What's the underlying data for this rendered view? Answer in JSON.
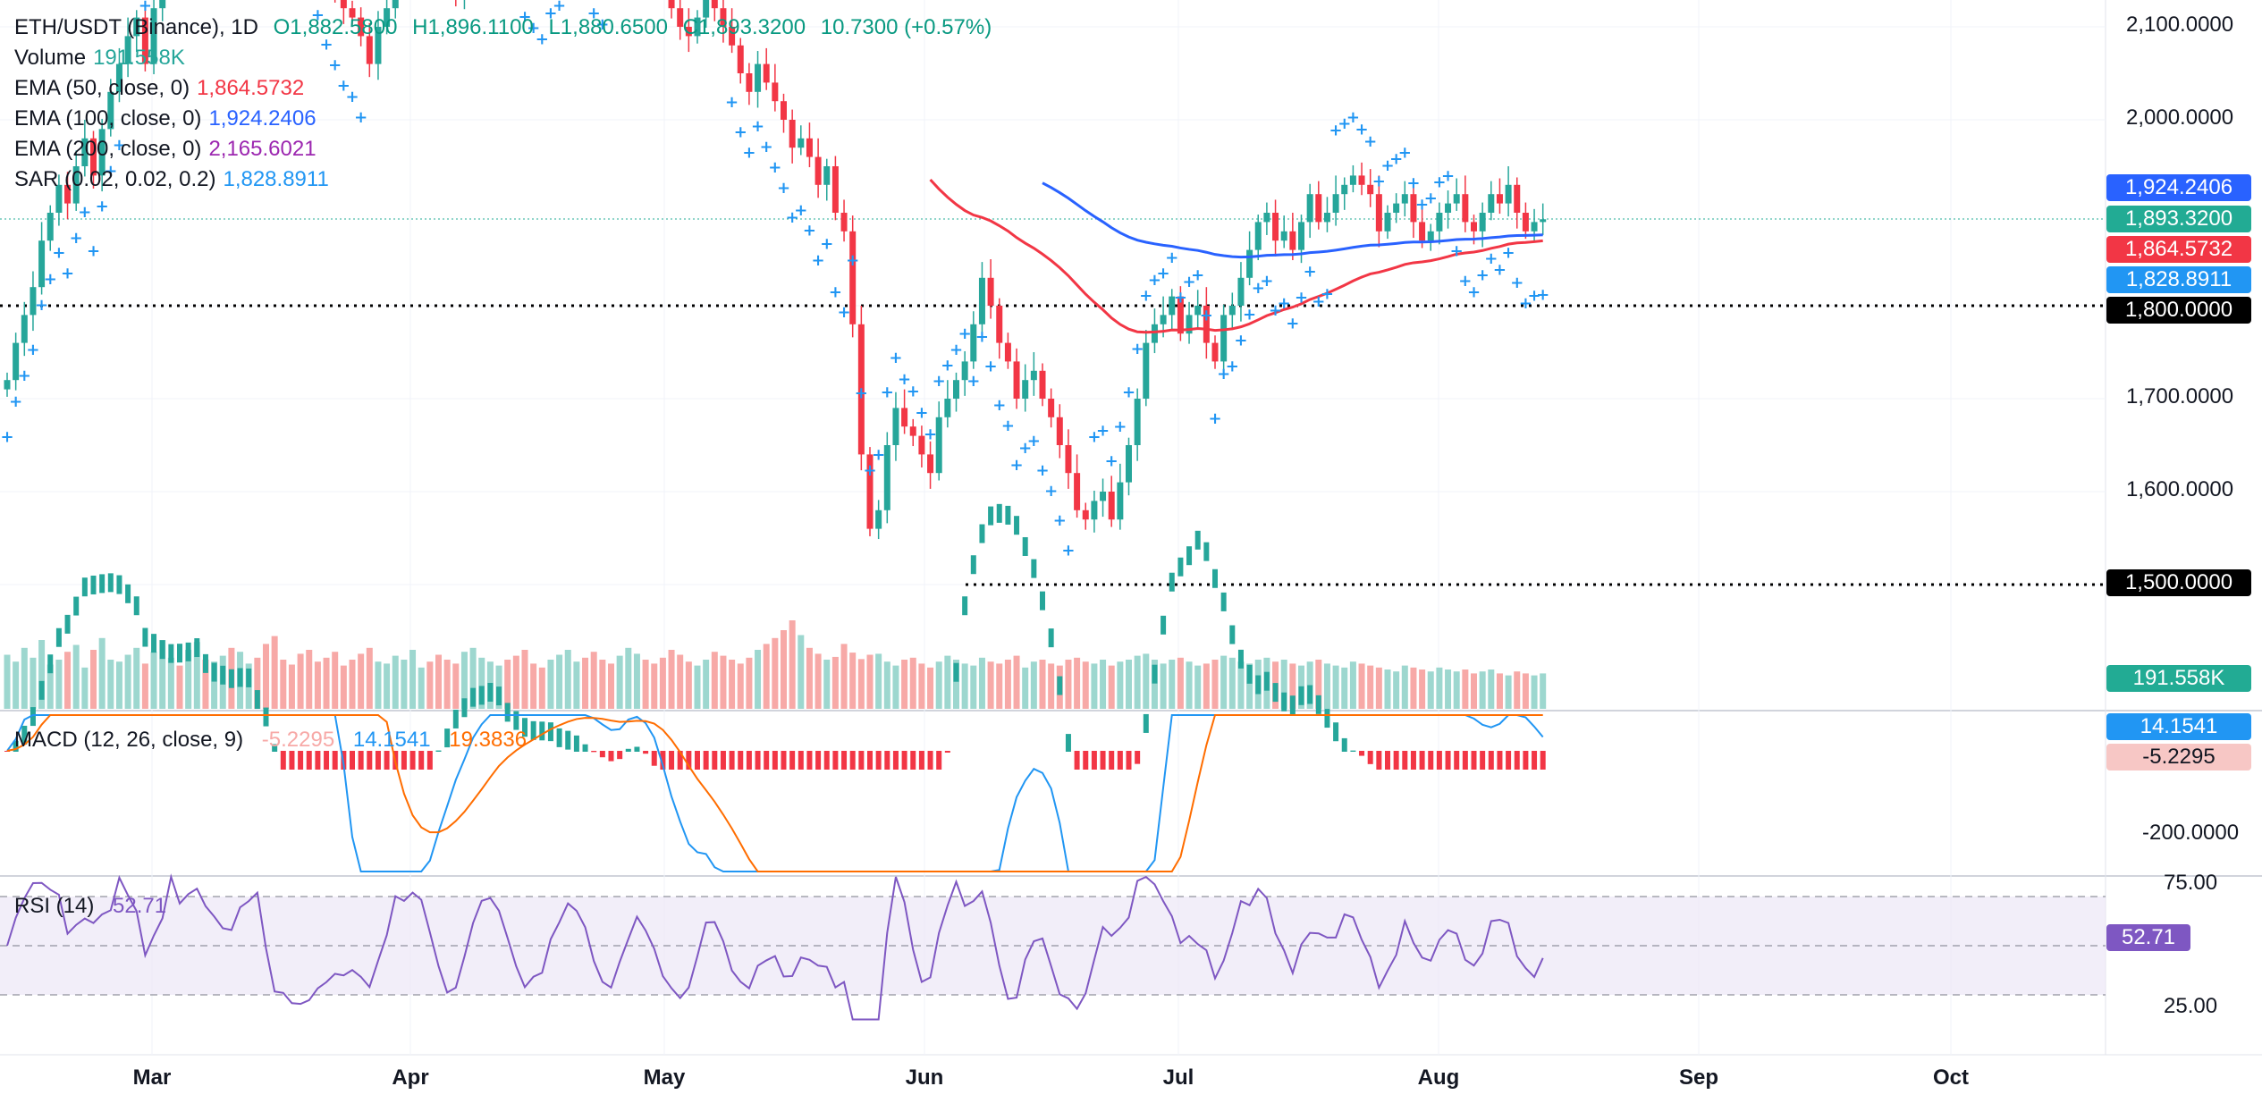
{
  "header": {
    "symbol": "ETH/USDT (Binance), 1D",
    "open": "O1,882.5800",
    "high": "H1,896.1100",
    "low": "L1,880.6500",
    "close": "C1,893.3200",
    "change": "10.7300 (+0.57%)"
  },
  "indicators": [
    {
      "label": "Volume",
      "value": "191.558K",
      "color": "#26a69a"
    },
    {
      "label": "EMA (50, close, 0)",
      "value": "1,864.5732",
      "color": "#f23645"
    },
    {
      "label": "EMA (100, close, 0)",
      "value": "1,924.2406",
      "color": "#2962ff"
    },
    {
      "label": "EMA (200, close, 0)",
      "value": "2,165.6021",
      "color": "#9c27b0"
    },
    {
      "label": "SAR (0.02, 0.02, 0.2)",
      "value": "1,828.8911",
      "color": "#2196f3"
    }
  ],
  "macd": {
    "label": "MACD (12, 26, close, 9)",
    "hist": "-5.2295",
    "macd": "14.1541",
    "signal": "19.3836"
  },
  "rsi": {
    "label": "RSI (14)",
    "value": "52.71"
  },
  "price_axis": [
    "2,100.0000",
    "2,000.0000",
    "1,700.0000",
    "1,600.0000"
  ],
  "macd_axis": [
    "-200.0000"
  ],
  "rsi_axis": [
    "75.00",
    "25.00"
  ],
  "volume_axis_partial": "0",
  "tags": {
    "ema100": "1,924.2406",
    "close": "1,893.3200",
    "ema50": "1,864.5732",
    "sar": "1,828.8911",
    "level1800": "1,800.0000",
    "level1500": "1,500.0000",
    "volume": "191.558K",
    "macd": "14.1541",
    "hist": "-5.2295",
    "rsi": "52.71"
  },
  "colors": {
    "up": "#26a69a",
    "down": "#f23645",
    "ema50": "#f23645",
    "ema100": "#2962ff",
    "sar": "#2196f3",
    "macd": "#2196f3",
    "signal": "#ff6d00",
    "rsi": "#7e57c2"
  },
  "chart_data": [
    {
      "type": "candlestick",
      "x_ticks": [
        "Mar",
        "Apr",
        "May",
        "Jun",
        "Jul",
        "Aug",
        "Sep",
        "Oct"
      ],
      "price_range": [
        1480,
        2130
      ],
      "horizontal_levels": [
        1800,
        1500
      ],
      "close_approx": [
        1720,
        1760,
        1790,
        1820,
        1870,
        1900,
        1930,
        1910,
        1950,
        1980,
        1940,
        1990,
        2030,
        2060,
        2090,
        2110,
        2060,
        2120,
        2160,
        2200,
        2180,
        2240,
        2300,
        2260,
        2310,
        2350,
        2300,
        2380,
        2420,
        2380,
        2360,
        2330,
        2300,
        2270,
        2240,
        2210,
        2190,
        2160,
        2140,
        2120,
        2110,
        2090,
        2060,
        2100,
        2120,
        2150,
        2170,
        2200,
        2220,
        2190,
        2170,
        2150,
        2130,
        2160,
        2190,
        2200,
        2230,
        2240,
        2210,
        2200,
        2180,
        2170,
        2160,
        2190,
        2200,
        2220,
        2240,
        2230,
        2200,
        2190,
        2170,
        2180,
        2200,
        2210,
        2190,
        2180,
        2150,
        2120,
        2100,
        2090,
        2110,
        2140,
        2120,
        2100,
        2080,
        2050,
        2030,
        2060,
        2040,
        2020,
        2000,
        1970,
        1980,
        1960,
        1930,
        1950,
        1900,
        1880,
        1780,
        1640,
        1560,
        1580,
        1650,
        1690,
        1670,
        1660,
        1640,
        1620,
        1680,
        1700,
        1720,
        1740,
        1780,
        1830,
        1800,
        1760,
        1740,
        1700,
        1720,
        1730,
        1700,
        1680,
        1650,
        1620,
        1580,
        1570,
        1590,
        1600,
        1570,
        1610,
        1650,
        1700,
        1760,
        1780,
        1790,
        1810,
        1770,
        1790,
        1800,
        1760,
        1740,
        1790,
        1800,
        1830,
        1860,
        1890,
        1900,
        1870,
        1880,
        1860,
        1890,
        1920,
        1890,
        1900,
        1920,
        1930,
        1940,
        1930,
        1920,
        1880,
        1900,
        1910,
        1920,
        1890,
        1870,
        1880,
        1900,
        1910,
        1920,
        1890,
        1880,
        1900,
        1920,
        1910,
        1930,
        1900,
        1880,
        1890,
        1893
      ]
    },
    {
      "type": "bar",
      "name": "Volume",
      "last": 191558,
      "values_relative": [
        0.55,
        0.48,
        0.62,
        0.52,
        0.7,
        0.45,
        0.5,
        0.58,
        0.65,
        0.42,
        0.6,
        0.72,
        0.5,
        0.48,
        0.55,
        0.62,
        0.46,
        0.58,
        0.7,
        0.52,
        0.44,
        0.6,
        0.68,
        0.5,
        0.48,
        0.54,
        0.62,
        0.58,
        0.46,
        0.52,
        0.66,
        0.74,
        0.5,
        0.45,
        0.56,
        0.6,
        0.48,
        0.52,
        0.58,
        0.44,
        0.5,
        0.56,
        0.62,
        0.48,
        0.46,
        0.54,
        0.5,
        0.6,
        0.42,
        0.48,
        0.55,
        0.5,
        0.46,
        0.58,
        0.62,
        0.52,
        0.48,
        0.44,
        0.5,
        0.54,
        0.6,
        0.46,
        0.42,
        0.5,
        0.55,
        0.6,
        0.48,
        0.52,
        0.58,
        0.5,
        0.46,
        0.54,
        0.62,
        0.56,
        0.5,
        0.46,
        0.52,
        0.6,
        0.55,
        0.48,
        0.44,
        0.5,
        0.58,
        0.54,
        0.5,
        0.46,
        0.52,
        0.6,
        0.66,
        0.72,
        0.8,
        0.9,
        0.75,
        0.62,
        0.56,
        0.5,
        0.48,
        0.6,
        0.52,
        0.46,
        0.5,
        0.56,
        0.48,
        0.44,
        0.5,
        0.52,
        0.46,
        0.42,
        0.48,
        0.54,
        0.5,
        0.46,
        0.44,
        0.52,
        0.48,
        0.46,
        0.5,
        0.54,
        0.42,
        0.48,
        0.5,
        0.46,
        0.44,
        0.5,
        0.52,
        0.48,
        0.46,
        0.5,
        0.44,
        0.48,
        0.5,
        0.54,
        0.56,
        0.5,
        0.46,
        0.5,
        0.52,
        0.48,
        0.44,
        0.46,
        0.5,
        0.54,
        0.52,
        0.48,
        0.46,
        0.5,
        0.52,
        0.48,
        0.5,
        0.46,
        0.44,
        0.48,
        0.5,
        0.46,
        0.44,
        0.42,
        0.48,
        0.46,
        0.44,
        0.42,
        0.4,
        0.38,
        0.44,
        0.42,
        0.4,
        0.38,
        0.42,
        0.4,
        0.38,
        0.4,
        0.36,
        0.38,
        0.4,
        0.36,
        0.34,
        0.38,
        0.36,
        0.34,
        0.36
      ]
    },
    {
      "type": "line",
      "name": "MACD",
      "axis_ticks": [
        -200
      ],
      "last_macd": 14.1541,
      "last_signal": 19.3836,
      "last_hist": -5.2295
    },
    {
      "type": "line",
      "name": "RSI (14)",
      "ylim": [
        25,
        75
      ],
      "bands": [
        70,
        50,
        30
      ],
      "last": 52.71
    }
  ]
}
